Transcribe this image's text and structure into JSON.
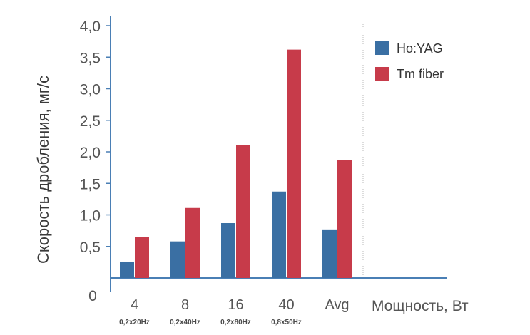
{
  "chart_data": {
    "type": "bar",
    "categories": [
      "4",
      "8",
      "16",
      "40",
      "Avg"
    ],
    "category_sublabels": [
      "0,2x20Hz",
      "0,2x40Hz",
      "0,2x80Hz",
      "0,8x50Hz",
      ""
    ],
    "series": [
      {
        "name": "Ho:YAG",
        "values": [
          0.26,
          0.58,
          0.87,
          1.37,
          0.77
        ],
        "color": "#3a6fa3"
      },
      {
        "name": "Tm fiber",
        "values": [
          0.65,
          1.11,
          2.11,
          3.62,
          1.87
        ],
        "color": "#c73b4a"
      }
    ],
    "ylabel": "Скорость дробления, мг/с",
    "xlabel": "Мощность, Вт",
    "ylim": [
      0,
      4.0
    ],
    "yticks": [
      "0,5",
      "1,0",
      "1,5",
      "2,0",
      "2,5",
      "3,0",
      "3,5",
      "4,0"
    ],
    "zero_label": "0",
    "grid": false,
    "legend_position": "top-right",
    "axis_color": "#4a7fb5"
  }
}
